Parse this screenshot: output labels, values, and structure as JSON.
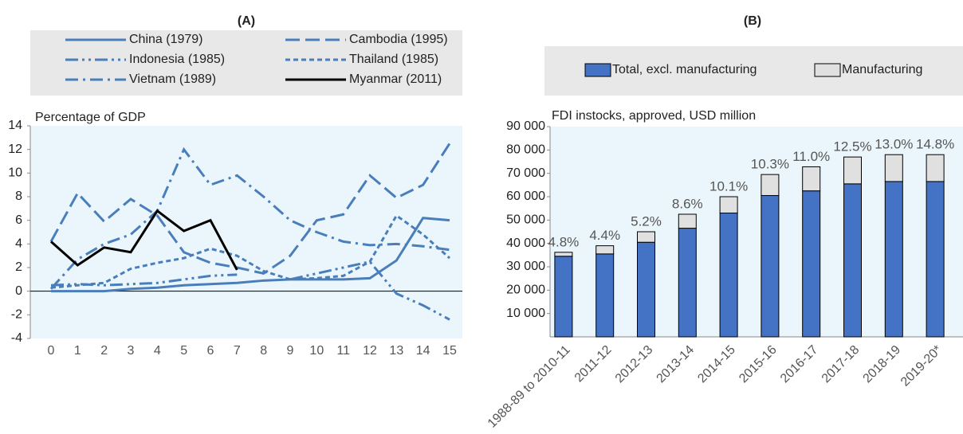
{
  "chart_data": [
    {
      "type": "line",
      "title": "(A)",
      "ylabel": "Percentage of GDP",
      "x": [
        0,
        1,
        2,
        3,
        4,
        5,
        6,
        7,
        8,
        9,
        10,
        11,
        12,
        13,
        14,
        15
      ],
      "xlim": [
        0,
        15
      ],
      "xticks": [
        0,
        1,
        2,
        3,
        4,
        5,
        6,
        7,
        8,
        9,
        10,
        11,
        12,
        13,
        14,
        15
      ],
      "ylim": [
        -4,
        14
      ],
      "yticks": [
        -4,
        -2,
        0,
        2,
        4,
        6,
        8,
        10,
        12,
        14
      ],
      "series": [
        {
          "name": "China (1979)",
          "color": "#4a7ebb",
          "dash": "solid",
          "values": [
            0,
            0,
            0,
            0.2,
            0.3,
            0.5,
            0.6,
            0.7,
            0.9,
            1.0,
            1.0,
            1.0,
            1.1,
            2.6,
            6.2,
            6.0
          ]
        },
        {
          "name": "Cambodia (1995)",
          "color": "#4a7ebb",
          "dash": "long",
          "values": [
            4.2,
            8.3,
            5.9,
            7.8,
            6.4,
            3.3,
            2.4,
            2.0,
            1.5,
            3.0,
            6.0,
            6.5,
            9.8,
            7.9,
            9.0,
            12.5
          ]
        },
        {
          "name": "Indonesia (1985)",
          "color": "#4a7ebb",
          "dash": "dashdotdot",
          "values": [
            0.5,
            0.6,
            0.5,
            0.6,
            0.7,
            1.0,
            1.3,
            1.4,
            null,
            1.0,
            1.5,
            2.0,
            2.5,
            -0.2,
            -1.2,
            -2.4
          ]
        },
        {
          "name": "Thailand (1985)",
          "color": "#4a7ebb",
          "dash": "short",
          "values": [
            0.3,
            0.5,
            0.7,
            1.9,
            2.4,
            2.8,
            3.6,
            3.0,
            1.7,
            1.0,
            1.1,
            1.3,
            2.5,
            6.4,
            4.8,
            2.8
          ]
        },
        {
          "name": "Vietnam (1989)",
          "color": "#4a7ebb",
          "dash": "dashdot",
          "values": [
            0.2,
            2.7,
            4.0,
            4.8,
            6.8,
            12.0,
            9.0,
            9.8,
            8.0,
            6.0,
            5.0,
            4.2,
            3.9,
            4.0,
            3.8,
            3.5
          ]
        },
        {
          "name": "Myanmar (2011)",
          "color": "#000000",
          "dash": "solid",
          "values": [
            4.2,
            2.2,
            3.7,
            3.3,
            6.8,
            5.1,
            6.0,
            1.8,
            null,
            null,
            null,
            null,
            null,
            null,
            null,
            null
          ]
        }
      ]
    },
    {
      "type": "stacked_bar",
      "title": "(B)",
      "ylabel": "FDI instocks, approved, USD million",
      "categories": [
        "1988-89 to 2010-11",
        "2011-12",
        "2012-13",
        "2013-14",
        "2014-15",
        "2015-16",
        "2016-17",
        "2017-18",
        "2018-19",
        "2019-20*"
      ],
      "ylim": [
        0,
        90000
      ],
      "yticks": [
        {
          "value": 10000,
          "label": "10 000"
        },
        {
          "value": 20000,
          "label": "20 000"
        },
        {
          "value": 30000,
          "label": "30 000"
        },
        {
          "value": 40000,
          "label": "40 000"
        },
        {
          "value": 50000,
          "label": "50 000"
        },
        {
          "value": 60000,
          "label": "60 000"
        },
        {
          "value": 70000,
          "label": "70 000"
        },
        {
          "value": 80000,
          "label": "80 000"
        },
        {
          "value": 90000,
          "label": "90 000"
        }
      ],
      "series": [
        {
          "name": "Total, excl. manufacturing",
          "color": "#4472c4",
          "values": [
            34500,
            35500,
            40500,
            46500,
            53000,
            60500,
            62500,
            65500,
            66500,
            66500
          ]
        },
        {
          "name": "Manufacturing",
          "color": "#e0e0e0",
          "values": [
            1700,
            3500,
            4500,
            6000,
            7000,
            9000,
            10300,
            11500,
            11500,
            11500
          ]
        }
      ],
      "annotations": [
        "4.8%",
        "4.4%",
        "5.2%",
        "8.6%",
        "10.1%",
        "10.3%",
        "11.0%",
        "12.5%",
        "13.0%",
        "14.8%"
      ]
    }
  ]
}
